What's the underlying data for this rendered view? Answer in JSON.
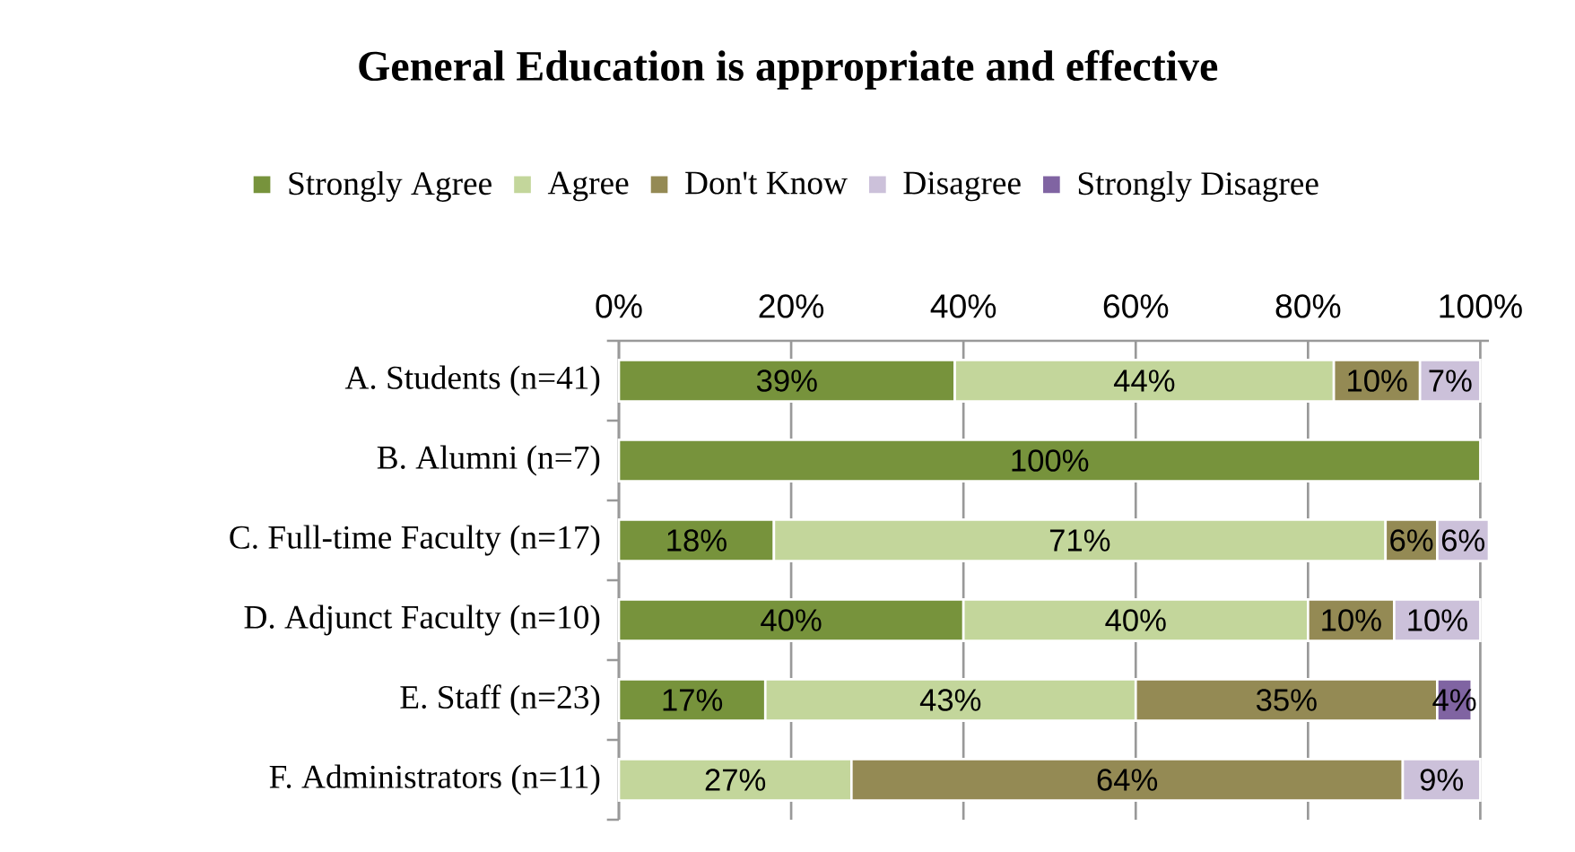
{
  "chart_data": {
    "type": "bar",
    "orientation": "horizontal",
    "stacked": true,
    "title": "General Education is appropriate and effective",
    "categories": [
      "A. Students (n=41)",
      "B. Alumni (n=7)",
      "C. Full-time Faculty (n=17)",
      "D. Adjunct Faculty (n=10)",
      "E. Staff (n=23)",
      "F. Administrators (n=11)"
    ],
    "series": [
      {
        "name": "Strongly Agree",
        "color": "#77933c",
        "values": [
          39,
          100,
          18,
          40,
          17,
          null
        ],
        "value_labels": [
          "39%",
          "100%",
          "18%",
          "40%",
          "17%",
          null
        ]
      },
      {
        "name": "Agree",
        "color": "#c3d69b",
        "values": [
          44,
          null,
          71,
          40,
          43,
          27
        ],
        "value_labels": [
          "44%",
          null,
          "71%",
          "40%",
          "43%",
          "27%"
        ]
      },
      {
        "name": "Don't Know",
        "color": "#948a54",
        "values": [
          10,
          null,
          6,
          10,
          35,
          64
        ],
        "value_labels": [
          "10%",
          null,
          "6%",
          "10%",
          "35%",
          "64%"
        ]
      },
      {
        "name": "Disagree",
        "color": "#ccc1da",
        "values": [
          7,
          null,
          6,
          10,
          null,
          9
        ],
        "value_labels": [
          "7%",
          null,
          "6%",
          "10%",
          null,
          "9%"
        ]
      },
      {
        "name": "Strongly Disagree",
        "color": "#8064a2",
        "values": [
          null,
          null,
          null,
          null,
          4,
          null
        ],
        "value_labels": [
          null,
          null,
          null,
          null,
          "4%",
          null
        ]
      }
    ],
    "xlim": [
      0,
      101
    ],
    "xticks": [
      {
        "value": 0,
        "label": "0%"
      },
      {
        "value": 20,
        "label": "20%"
      },
      {
        "value": 40,
        "label": "40%"
      },
      {
        "value": 60,
        "label": "60%"
      },
      {
        "value": 80,
        "label": "80%"
      },
      {
        "value": 100,
        "label": "100%"
      }
    ],
    "grid": "x",
    "legend": "top"
  }
}
